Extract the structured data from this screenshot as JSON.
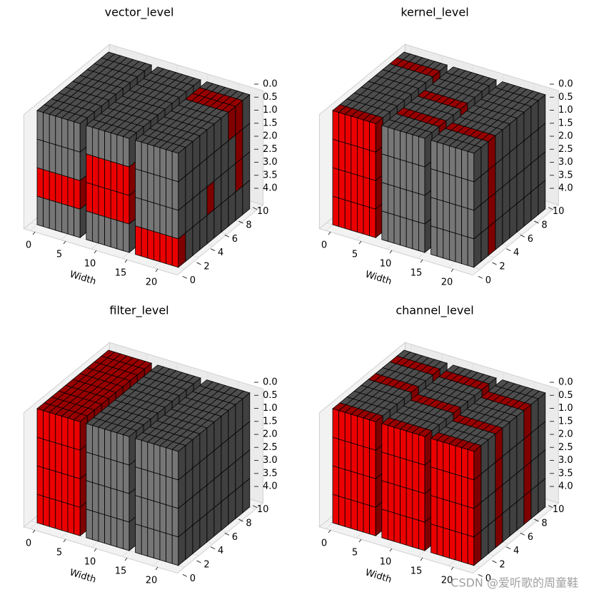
{
  "chart_data": [
    {
      "type": "voxel",
      "title": "vector_level",
      "xlabel": "Width",
      "xlim": [
        -1,
        24
      ],
      "ylim": [
        -1,
        11
      ],
      "zlim": [
        0,
        4
      ],
      "zinverted": true,
      "xticks": [
        0,
        5,
        10,
        15,
        20
      ],
      "yticks": [
        0,
        2,
        4,
        6,
        8,
        10
      ],
      "zticks": [
        {
          "value": 0,
          "label": "0.0"
        },
        {
          "value": 0.5,
          "label": "0.5"
        },
        {
          "value": 1,
          "label": "1.0"
        },
        {
          "value": 1.5,
          "label": "1.5"
        },
        {
          "value": 2,
          "label": "2.0"
        },
        {
          "value": 2.5,
          "label": "2.5"
        },
        {
          "value": 3,
          "label": "3.0"
        },
        {
          "value": 3.5,
          "label": "3.5"
        },
        {
          "value": 4,
          "label": "4.0"
        }
      ],
      "blocks": [
        {
          "x": [
            0,
            7
          ],
          "y": [
            0,
            10
          ],
          "z": [
            0,
            4
          ],
          "color": "#808080"
        },
        {
          "x": [
            8,
            15
          ],
          "y": [
            0,
            10
          ],
          "z": [
            0,
            4
          ],
          "color": "#808080"
        },
        {
          "x": [
            16,
            23
          ],
          "y": [
            0,
            10
          ],
          "z": [
            0,
            4
          ],
          "color": "#808080"
        }
      ],
      "highlights": [
        {
          "x": [
            0,
            7
          ],
          "y": [
            0,
            1
          ],
          "z": [
            2,
            3
          ],
          "color": "#ff0000"
        },
        {
          "x": [
            8,
            15
          ],
          "y": [
            0,
            1
          ],
          "z": [
            1,
            3
          ],
          "color": "#ff0000"
        },
        {
          "x": [
            16,
            23
          ],
          "y": [
            0,
            1
          ],
          "z": [
            3,
            4
          ],
          "color": "#ff0000"
        },
        {
          "x": [
            16,
            23
          ],
          "y": [
            7,
            9
          ],
          "z": [
            0,
            1
          ],
          "color": "#ff0000"
        },
        {
          "x": [
            16,
            23
          ],
          "y": [
            4,
            5
          ],
          "z": [
            2,
            3
          ],
          "color": "#ff0000"
        },
        {
          "x": [
            16,
            23
          ],
          "y": [
            8,
            9
          ],
          "z": [
            1,
            3
          ],
          "color": "#ff0000"
        }
      ]
    },
    {
      "type": "voxel",
      "title": "kernel_level",
      "xlabel": "Width",
      "xlim": [
        -1,
        24
      ],
      "ylim": [
        -1,
        11
      ],
      "zlim": [
        0,
        4
      ],
      "zinverted": true,
      "xticks": [
        0,
        5,
        10,
        15,
        20
      ],
      "yticks": [
        0,
        2,
        4,
        6,
        8,
        10
      ],
      "zticks": [
        {
          "value": 0,
          "label": "0.0"
        },
        {
          "value": 0.5,
          "label": "0.5"
        },
        {
          "value": 1,
          "label": "1.0"
        },
        {
          "value": 1.5,
          "label": "1.5"
        },
        {
          "value": 2,
          "label": "2.0"
        },
        {
          "value": 2.5,
          "label": "2.5"
        },
        {
          "value": 3,
          "label": "3.0"
        },
        {
          "value": 3.5,
          "label": "3.5"
        },
        {
          "value": 4,
          "label": "4.0"
        }
      ],
      "blocks": [
        {
          "x": [
            0,
            7
          ],
          "y": [
            0,
            10
          ],
          "z": [
            0,
            4
          ],
          "color": "#808080"
        },
        {
          "x": [
            8,
            15
          ],
          "y": [
            0,
            10
          ],
          "z": [
            0,
            4
          ],
          "color": "#808080"
        },
        {
          "x": [
            16,
            23
          ],
          "y": [
            0,
            10
          ],
          "z": [
            0,
            4
          ],
          "color": "#808080"
        }
      ],
      "highlights": [
        {
          "x": [
            0,
            7
          ],
          "y": [
            0,
            1
          ],
          "z": [
            0,
            4
          ],
          "color": "#ff0000"
        },
        {
          "x": [
            0,
            7
          ],
          "y": [
            8,
            9
          ],
          "z": [
            0,
            4
          ],
          "color": "#ff0000"
        },
        {
          "x": [
            8,
            15
          ],
          "y": [
            2,
            3
          ],
          "z": [
            0,
            4
          ],
          "color": "#ff0000"
        },
        {
          "x": [
            8,
            15
          ],
          "y": [
            5,
            6
          ],
          "z": [
            0,
            4
          ],
          "color": "#ff0000"
        },
        {
          "x": [
            16,
            23
          ],
          "y": [
            2,
            3
          ],
          "z": [
            0,
            4
          ],
          "color": "#ff0000"
        }
      ]
    },
    {
      "type": "voxel",
      "title": "filter_level",
      "xlabel": "Width",
      "xlim": [
        -1,
        24
      ],
      "ylim": [
        -1,
        11
      ],
      "zlim": [
        0,
        4
      ],
      "zinverted": true,
      "xticks": [
        0,
        5,
        10,
        15,
        20
      ],
      "yticks": [
        0,
        2,
        4,
        6,
        8,
        10
      ],
      "zticks": [
        {
          "value": 0,
          "label": "0.0"
        },
        {
          "value": 0.5,
          "label": "0.5"
        },
        {
          "value": 1,
          "label": "1.0"
        },
        {
          "value": 1.5,
          "label": "1.5"
        },
        {
          "value": 2,
          "label": "2.0"
        },
        {
          "value": 2.5,
          "label": "2.5"
        },
        {
          "value": 3,
          "label": "3.0"
        },
        {
          "value": 3.5,
          "label": "3.5"
        },
        {
          "value": 4,
          "label": "4.0"
        }
      ],
      "blocks": [
        {
          "x": [
            0,
            7
          ],
          "y": [
            0,
            10
          ],
          "z": [
            0,
            4
          ],
          "color": "#808080"
        },
        {
          "x": [
            8,
            15
          ],
          "y": [
            0,
            10
          ],
          "z": [
            0,
            4
          ],
          "color": "#808080"
        },
        {
          "x": [
            16,
            23
          ],
          "y": [
            0,
            10
          ],
          "z": [
            0,
            4
          ],
          "color": "#808080"
        }
      ],
      "highlights": [
        {
          "x": [
            0,
            7
          ],
          "y": [
            0,
            10
          ],
          "z": [
            0,
            4
          ],
          "color": "#ff0000"
        }
      ]
    },
    {
      "type": "voxel",
      "title": "channel_level",
      "xlabel": "Width",
      "xlim": [
        -1,
        24
      ],
      "ylim": [
        -1,
        11
      ],
      "zlim": [
        0,
        4
      ],
      "zinverted": true,
      "xticks": [
        0,
        5,
        10,
        15,
        20
      ],
      "yticks": [
        0,
        2,
        4,
        6,
        8,
        10
      ],
      "zticks": [
        {
          "value": 0,
          "label": "0.0"
        },
        {
          "value": 0.5,
          "label": "0.5"
        },
        {
          "value": 1,
          "label": "1.0"
        },
        {
          "value": 1.5,
          "label": "1.5"
        },
        {
          "value": 2,
          "label": "2.0"
        },
        {
          "value": 2.5,
          "label": "2.5"
        },
        {
          "value": 3,
          "label": "3.0"
        },
        {
          "value": 3.5,
          "label": "3.5"
        },
        {
          "value": 4,
          "label": "4.0"
        }
      ],
      "blocks": [
        {
          "x": [
            0,
            7
          ],
          "y": [
            0,
            10
          ],
          "z": [
            0,
            4
          ],
          "color": "#808080"
        },
        {
          "x": [
            8,
            15
          ],
          "y": [
            0,
            10
          ],
          "z": [
            0,
            4
          ],
          "color": "#808080"
        },
        {
          "x": [
            16,
            23
          ],
          "y": [
            0,
            10
          ],
          "z": [
            0,
            4
          ],
          "color": "#808080"
        }
      ],
      "highlights": [
        {
          "x": [
            0,
            7
          ],
          "y": [
            0,
            1
          ],
          "z": [
            0,
            4
          ],
          "color": "#ff0000"
        },
        {
          "x": [
            0,
            7
          ],
          "y": [
            5,
            6
          ],
          "z": [
            0,
            4
          ],
          "color": "#ff0000"
        },
        {
          "x": [
            0,
            7
          ],
          "y": [
            8,
            9
          ],
          "z": [
            0,
            4
          ],
          "color": "#ff0000"
        },
        {
          "x": [
            8,
            15
          ],
          "y": [
            0,
            1
          ],
          "z": [
            0,
            4
          ],
          "color": "#ff0000"
        },
        {
          "x": [
            8,
            15
          ],
          "y": [
            4,
            5
          ],
          "z": [
            0,
            4
          ],
          "color": "#ff0000"
        },
        {
          "x": [
            8,
            15
          ],
          "y": [
            8,
            9
          ],
          "z": [
            0,
            4
          ],
          "color": "#ff0000"
        },
        {
          "x": [
            16,
            23
          ],
          "y": [
            0,
            1
          ],
          "z": [
            0,
            4
          ],
          "color": "#ff0000"
        },
        {
          "x": [
            16,
            23
          ],
          "y": [
            3,
            4
          ],
          "z": [
            0,
            4
          ],
          "color": "#ff0000"
        },
        {
          "x": [
            16,
            23
          ],
          "y": [
            7,
            8
          ],
          "z": [
            0,
            4
          ],
          "color": "#ff0000"
        }
      ]
    }
  ],
  "watermark": "CSDN @爱听歌的周童鞋"
}
